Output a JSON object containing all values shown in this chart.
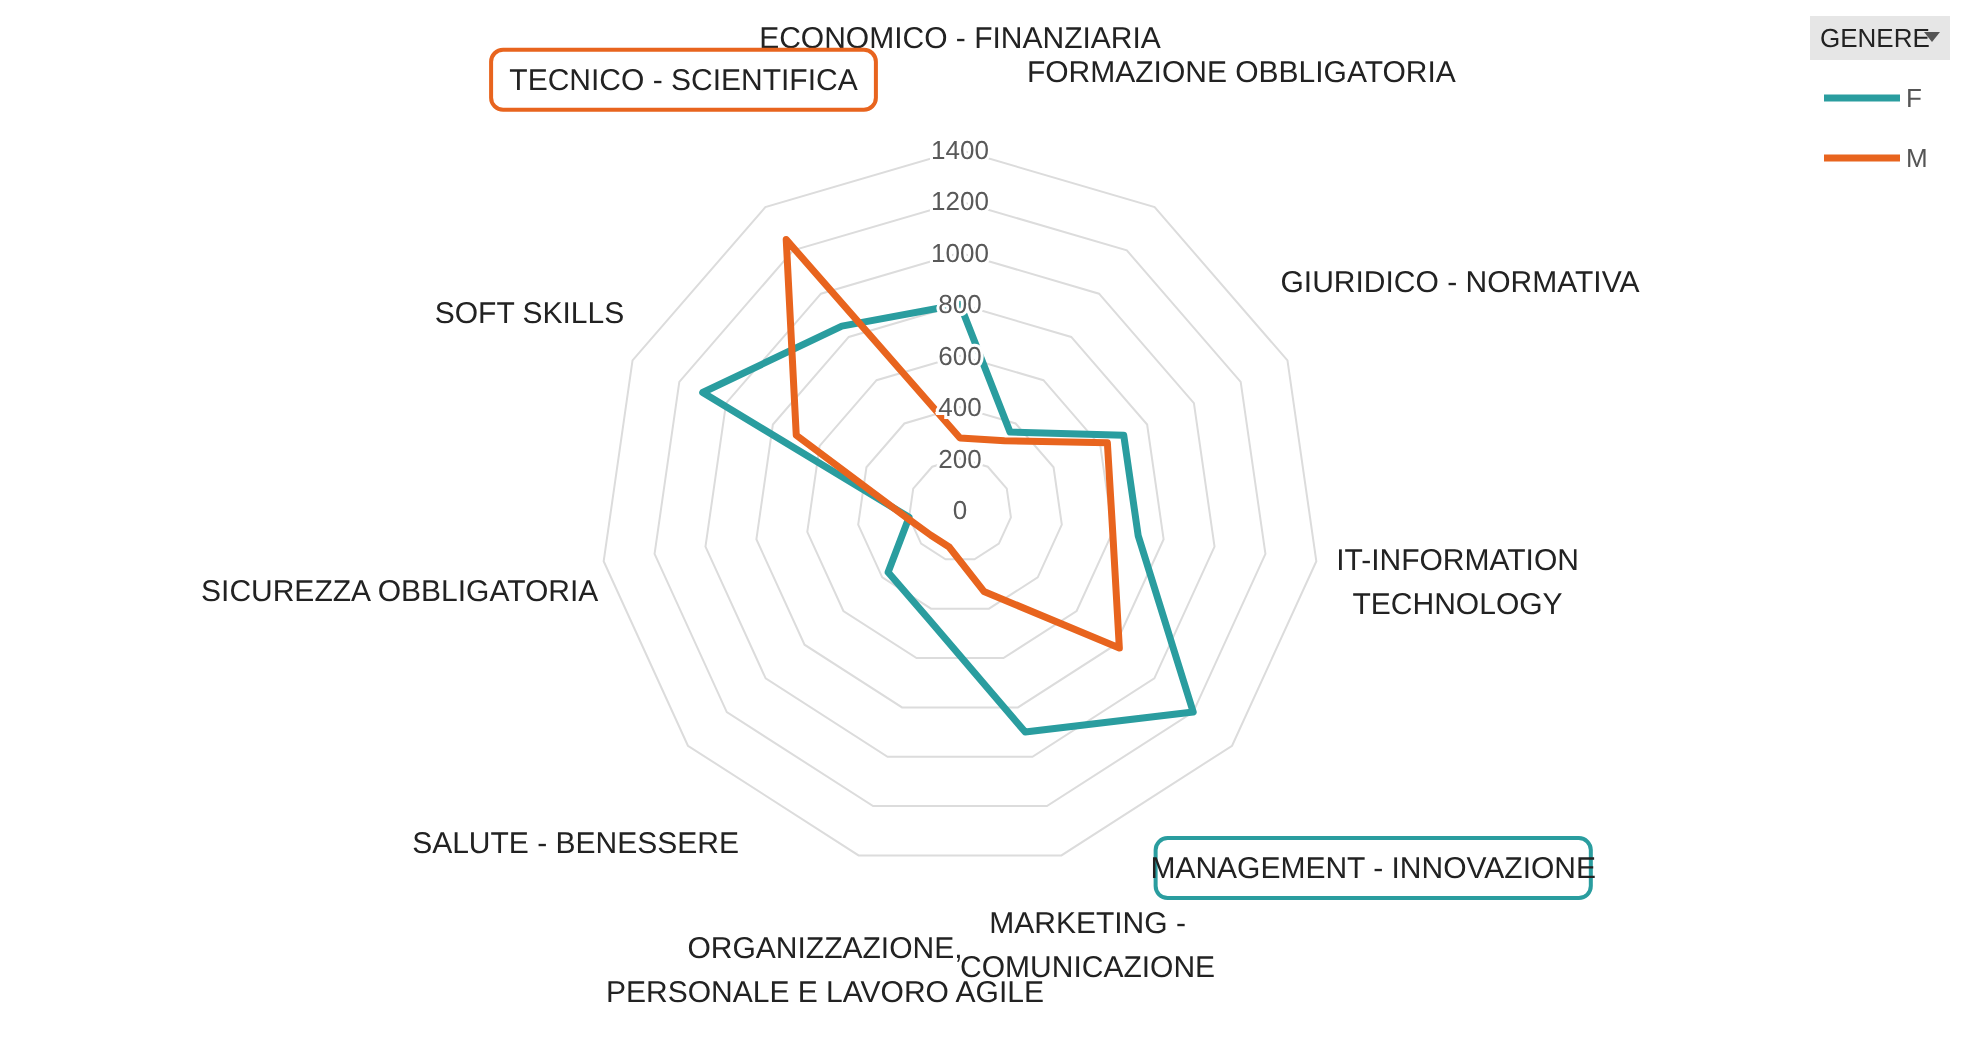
{
  "chart_data": {
    "type": "radar",
    "categories": [
      "ECONOMICO - FINANZIARIA",
      "FORMAZIONE OBBLIGATORIA",
      "GIURIDICO - NORMATIVA",
      "IT-INFORMATION\nTECHNOLOGY",
      "MANAGEMENT - INNOVAZIONE",
      "MARKETING -\nCOMUNICAZIONE",
      "ORGANIZZAZIONE,\nPERSONALE E LAVORO AGILE",
      "SALUTE - BENESSERE",
      "SICUREZZA OBBLIGATORIA",
      "SOFT SKILLS",
      "TECNICO - SCIENTIFICA"
    ],
    "series": [
      {
        "name": "F",
        "color": "#2a9d9f",
        "values": [
          800,
          360,
          700,
          700,
          1200,
          900,
          440,
          370,
          200,
          1100,
          850
        ]
      },
      {
        "name": "M",
        "color": "#e8641e",
        "values": [
          280,
          320,
          630,
          600,
          820,
          330,
          150,
          150,
          210,
          700,
          1250
        ]
      }
    ],
    "ylim": [
      0,
      1400
    ],
    "yticks": [
      0,
      200,
      400,
      600,
      800,
      1000,
      1200,
      1400
    ],
    "grid": true,
    "legend": "top right",
    "legend_title": "GENERE",
    "marker": "none"
  }
}
